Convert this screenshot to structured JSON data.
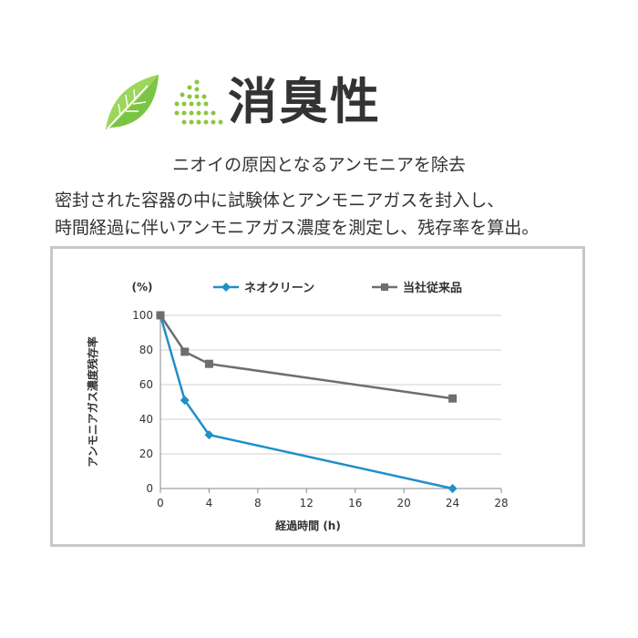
{
  "header": {
    "title": "消臭性",
    "leaf_icon": "leaf-icon",
    "dots_icon": "spray-dots-icon",
    "accent_green": "#6bbf3a"
  },
  "subtitle": "ニオイの原因となるアンモニアを除去",
  "description": [
    "密封された容器の中に試験体とアンモニアガスを封入し、",
    "時間経過に伴いアンモニアガス濃度を測定し、残存率を算出。"
  ],
  "chart_data": {
    "type": "line",
    "ylabel": "アンモニアガス濃度残存率",
    "yunit": "(%)",
    "xlabel": "経過時間 (h)",
    "xlim": [
      0,
      28
    ],
    "ylim": [
      0,
      100
    ],
    "xticks": [
      0,
      4,
      8,
      12,
      16,
      20,
      24,
      28
    ],
    "yticks": [
      0,
      20,
      40,
      60,
      80,
      100
    ],
    "grid": "horizontal",
    "legend_position": "top",
    "series": [
      {
        "name": "ネオクリーン",
        "color": "#1f8fc7",
        "marker": "diamond",
        "x": [
          0,
          2,
          4,
          24
        ],
        "y": [
          100,
          51,
          31,
          0
        ]
      },
      {
        "name": "当社従来品",
        "color": "#6e6e6e",
        "marker": "square",
        "x": [
          0,
          2,
          4,
          24
        ],
        "y": [
          100,
          79,
          72,
          52
        ]
      }
    ]
  }
}
